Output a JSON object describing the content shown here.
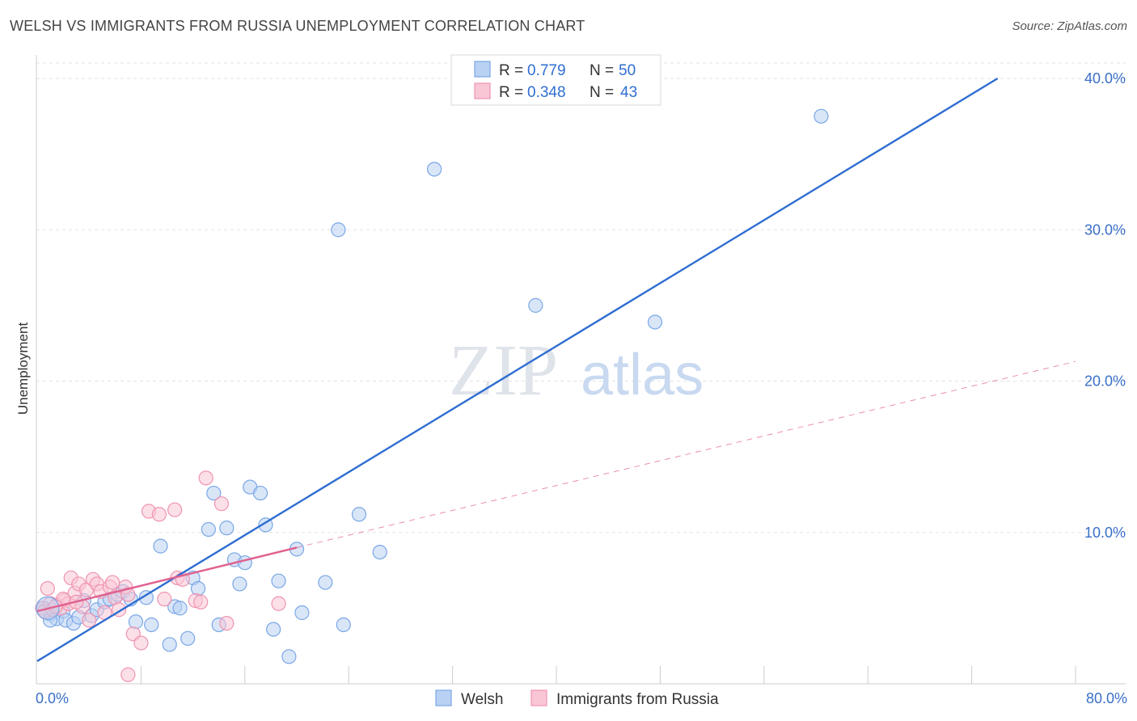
{
  "title": "WELSH VS IMMIGRANTS FROM RUSSIA UNEMPLOYMENT CORRELATION CHART",
  "source": "Source: ZipAtlas.com",
  "watermark": {
    "zip": "ZIP",
    "atlas": "atlas"
  },
  "legend": {
    "r_label": "R =",
    "n_label": "N =",
    "items": [
      {
        "r": "0.779",
        "n": "50",
        "fill": "#b9d1f2",
        "stroke": "#7aa7e6"
      },
      {
        "r": "0.348",
        "n": "43",
        "fill": "#f9c6d5",
        "stroke": "#ef94b1"
      }
    ]
  },
  "bottom_legend": [
    {
      "label": "Welsh",
      "fill": "#b9d1f2",
      "stroke": "#7aa7e6"
    },
    {
      "label": "Immigrants from Russia",
      "fill": "#f9c6d5",
      "stroke": "#ef94b1"
    }
  ],
  "chart_data": {
    "type": "scatter",
    "title": "WELSH VS IMMIGRANTS FROM RUSSIA UNEMPLOYMENT CORRELATION CHART",
    "xlabel": "",
    "ylabel": "Unemployment",
    "xlim": [
      0,
      80
    ],
    "ylim": [
      0,
      42
    ],
    "x_tick_labels": [
      {
        "value": 0,
        "label": "0.0%"
      },
      {
        "value": 80,
        "label": "80.0%"
      }
    ],
    "x_minor_ticks": [
      8,
      16,
      24,
      32,
      40,
      48,
      56,
      64,
      72,
      80
    ],
    "y_ticks": [
      {
        "value": 10,
        "label": "10.0%"
      },
      {
        "value": 20,
        "label": "20.0%"
      },
      {
        "value": 30,
        "label": "30.0%"
      },
      {
        "value": 40,
        "label": "40.0%"
      }
    ],
    "grid": true,
    "series": [
      {
        "name": "Welsh",
        "color": "#7aa7e6",
        "fill": "#b9d1f2",
        "line_color": "#2f6ed1",
        "trend": {
          "x0": 0,
          "y0": 1.5,
          "x1": 74,
          "y1": 40,
          "dashed_extension": false
        },
        "points": [
          [
            0.5,
            5.0
          ],
          [
            1.0,
            4.6
          ],
          [
            1.5,
            4.3
          ],
          [
            2.0,
            4.8
          ],
          [
            2.2,
            4.2
          ],
          [
            2.8,
            4.0
          ],
          [
            3.2,
            4.4
          ],
          [
            3.6,
            5.5
          ],
          [
            4.2,
            4.5
          ],
          [
            4.6,
            4.9
          ],
          [
            5.2,
            5.4
          ],
          [
            5.6,
            5.6
          ],
          [
            6.2,
            5.9
          ],
          [
            6.6,
            6.1
          ],
          [
            7.2,
            5.6
          ],
          [
            7.6,
            4.1
          ],
          [
            8.4,
            5.7
          ],
          [
            8.8,
            3.9
          ],
          [
            9.5,
            9.1
          ],
          [
            10.2,
            2.6
          ],
          [
            10.6,
            5.1
          ],
          [
            11.0,
            5.0
          ],
          [
            11.6,
            3.0
          ],
          [
            12.0,
            7.0
          ],
          [
            12.4,
            6.3
          ],
          [
            13.2,
            10.2
          ],
          [
            13.6,
            12.6
          ],
          [
            14.0,
            3.9
          ],
          [
            14.6,
            10.3
          ],
          [
            15.2,
            8.2
          ],
          [
            15.6,
            6.6
          ],
          [
            16.0,
            8.0
          ],
          [
            16.4,
            13.0
          ],
          [
            17.2,
            12.6
          ],
          [
            17.6,
            10.5
          ],
          [
            18.2,
            3.6
          ],
          [
            18.6,
            6.8
          ],
          [
            19.4,
            1.8
          ],
          [
            20.0,
            8.9
          ],
          [
            20.4,
            4.7
          ],
          [
            22.2,
            6.7
          ],
          [
            23.2,
            30.0
          ],
          [
            23.6,
            3.9
          ],
          [
            24.8,
            11.2
          ],
          [
            26.4,
            8.7
          ],
          [
            30.6,
            34.0
          ],
          [
            38.4,
            25.0
          ],
          [
            47.6,
            23.9
          ],
          [
            60.4,
            37.5
          ],
          [
            1.0,
            4.2
          ]
        ]
      },
      {
        "name": "Immigrants from Russia",
        "color": "#ef94b1",
        "fill": "#f9c6d5",
        "line_color": "#e0608f",
        "trend": {
          "x0": 0,
          "y0": 4.8,
          "x1": 20,
          "y1": 9.0,
          "dashed_extension": true,
          "x2": 80,
          "y2": 21.3
        },
        "points": [
          [
            0.4,
            5.0
          ],
          [
            0.6,
            4.8
          ],
          [
            0.8,
            6.3
          ],
          [
            1.0,
            5.3
          ],
          [
            1.2,
            4.9
          ],
          [
            1.5,
            5.2
          ],
          [
            1.8,
            5.0
          ],
          [
            2.1,
            5.5
          ],
          [
            2.4,
            5.3
          ],
          [
            2.6,
            7.0
          ],
          [
            2.9,
            6.0
          ],
          [
            3.2,
            6.6
          ],
          [
            3.5,
            5.1
          ],
          [
            3.8,
            6.2
          ],
          [
            4.0,
            4.2
          ],
          [
            4.3,
            6.9
          ],
          [
            4.6,
            6.6
          ],
          [
            4.9,
            6.1
          ],
          [
            5.2,
            4.7
          ],
          [
            5.6,
            6.4
          ],
          [
            5.8,
            6.7
          ],
          [
            6.0,
            5.7
          ],
          [
            6.3,
            4.9
          ],
          [
            6.8,
            6.4
          ],
          [
            7.0,
            5.9
          ],
          [
            7.4,
            3.3
          ],
          [
            8.0,
            2.7
          ],
          [
            8.6,
            11.4
          ],
          [
            9.4,
            11.2
          ],
          [
            9.8,
            5.6
          ],
          [
            10.6,
            11.5
          ],
          [
            10.8,
            7.0
          ],
          [
            11.2,
            6.9
          ],
          [
            12.2,
            5.5
          ],
          [
            12.6,
            5.4
          ],
          [
            13.0,
            13.6
          ],
          [
            14.2,
            11.9
          ],
          [
            14.6,
            4.0
          ],
          [
            18.6,
            5.3
          ],
          [
            7.0,
            0.6
          ],
          [
            3.0,
            5.4
          ],
          [
            2.0,
            5.6
          ],
          [
            1.4,
            5.1
          ]
        ]
      }
    ]
  }
}
